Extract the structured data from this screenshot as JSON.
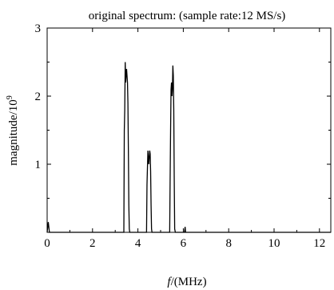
{
  "chart_data": {
    "type": "line",
    "title": "original spectrum: (sample rate:12 MS/s)",
    "xlabel_italic": "f",
    "xlabel_rest": "/(MHz)",
    "ylabel_base": "magnitude/10",
    "ylabel_exp": "9",
    "xlim": [
      0,
      12.5
    ],
    "ylim": [
      0,
      3
    ],
    "xticks": [
      0,
      2,
      4,
      6,
      8,
      10,
      12
    ],
    "xtick_labels": [
      "0",
      "2",
      "4",
      "6",
      "8",
      "10",
      "12"
    ],
    "yticks": [
      1,
      2,
      3
    ],
    "ytick_labels": [
      "1",
      "2",
      "3"
    ],
    "grid": false,
    "series": [
      {
        "color": "#000000",
        "x": [
          0.0,
          0.05,
          0.1,
          0.15,
          3.38,
          3.4,
          3.42,
          3.44,
          3.46,
          3.48,
          3.5,
          3.52,
          3.54,
          3.56,
          3.58,
          3.6,
          3.62,
          3.64,
          4.38,
          4.4,
          4.42,
          4.44,
          4.46,
          4.48,
          4.5,
          4.52,
          4.54,
          4.56,
          4.58,
          4.6,
          4.62,
          5.4,
          5.42,
          5.44,
          5.46,
          5.48,
          5.5,
          5.52,
          5.54,
          5.56,
          5.58,
          5.6,
          5.62,
          5.65,
          6.05,
          6.08,
          6.1,
          12.5
        ],
        "y": [
          0.0,
          0.15,
          0.0,
          0.0,
          0.0,
          1.5,
          1.8,
          2.5,
          2.2,
          2.3,
          2.4,
          2.3,
          2.2,
          1.9,
          1.2,
          0.4,
          0.05,
          0.0,
          0.0,
          0.7,
          0.95,
          1.2,
          1.1,
          1.0,
          1.1,
          1.2,
          1.15,
          0.9,
          0.4,
          0.05,
          0.0,
          0.0,
          0.8,
          1.5,
          2.1,
          2.2,
          2.0,
          2.1,
          2.45,
          2.3,
          1.8,
          0.8,
          0.05,
          0.0,
          0.0,
          0.08,
          0.0,
          0.0
        ]
      }
    ]
  }
}
